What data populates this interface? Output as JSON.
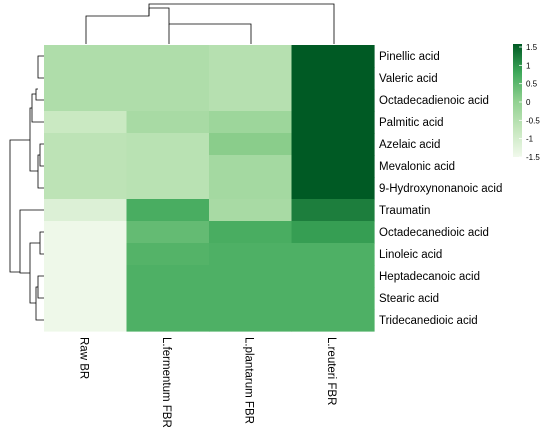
{
  "chart_data": {
    "type": "heatmap",
    "rows": [
      "Pinellic acid",
      "Valeric acid",
      "Octadecadienoic acid",
      "Palmitic acid",
      "Azelaic acid",
      "Mevalonic acid",
      "9-Hydroxynonanoic acid",
      "Traumatin",
      "Octadecanedioic acid",
      "Linoleic acid",
      "Heptadecanoic acid",
      "Stearic acid",
      "Tridecanedioic acid"
    ],
    "columns": [
      "Raw BR",
      "L.fermentum FBR",
      "L.plantarum FBR",
      "L.reuteri FBR"
    ],
    "values": [
      [
        -0.45,
        -0.45,
        -0.55,
        1.55
      ],
      [
        -0.45,
        -0.45,
        -0.55,
        1.55
      ],
      [
        -0.45,
        -0.45,
        -0.55,
        1.55
      ],
      [
        -0.85,
        -0.35,
        -0.2,
        1.5
      ],
      [
        -0.65,
        -0.6,
        0.05,
        1.5
      ],
      [
        -0.65,
        -0.6,
        -0.3,
        1.55
      ],
      [
        -0.65,
        -0.6,
        -0.3,
        1.55
      ],
      [
        -1.15,
        0.65,
        -0.35,
        1.15
      ],
      [
        -1.45,
        0.4,
        0.65,
        0.85
      ],
      [
        -1.45,
        0.55,
        0.6,
        0.6
      ],
      [
        -1.45,
        0.6,
        0.6,
        0.6
      ],
      [
        -1.45,
        0.6,
        0.6,
        0.6
      ],
      [
        -1.45,
        0.6,
        0.6,
        0.6
      ]
    ],
    "color_scale": {
      "min": -1.5,
      "max": 1.5,
      "low_color": "#f1f9ec",
      "mid_color": "#8fd08f",
      "high_color": "#005a24"
    },
    "legend_ticks": [
      "1.5",
      "1",
      "0.5",
      "0",
      "-0.5",
      "-1",
      "-1.5"
    ],
    "legend_tick_values": [
      1.5,
      1,
      0.5,
      0,
      -0.5,
      -1,
      -1.5
    ],
    "legend_position": "top-right",
    "row_dendrogram": true,
    "column_dendrogram": true
  }
}
